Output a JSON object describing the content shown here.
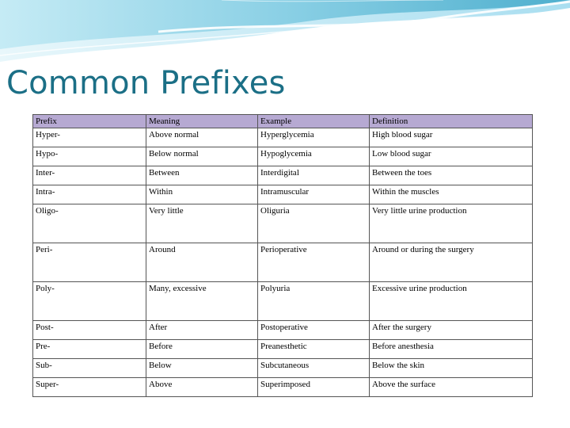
{
  "slide": {
    "title": "Common Prefixes",
    "colors": {
      "title": "#1b6f86",
      "header_bg": "#b6a9d2",
      "wave_light": "#d9f2f8",
      "wave_mid": "#8fd3e6",
      "wave_dark": "#3fa7c8"
    }
  },
  "table": {
    "headers": [
      "Prefix",
      "Meaning",
      "Example",
      "Definition"
    ],
    "rows": [
      {
        "prefix": "Hyper-",
        "meaning": "Above normal",
        "example": "Hyperglycemia",
        "definition": "High blood sugar",
        "tall": false
      },
      {
        "prefix": "Hypo-",
        "meaning": "Below normal",
        "example": "Hypoglycemia",
        "definition": "Low blood sugar",
        "tall": false
      },
      {
        "prefix": "Inter-",
        "meaning": "Between",
        "example": "Interdigital",
        "definition": "Between the toes",
        "tall": false
      },
      {
        "prefix": "Intra-",
        "meaning": "Within",
        "example": "Intramuscular",
        "definition": "Within the muscles",
        "tall": false
      },
      {
        "prefix": "Oligo-",
        "meaning": "Very little",
        "example": "Oliguria",
        "definition": "Very little urine production",
        "tall": true
      },
      {
        "prefix": "Peri-",
        "meaning": "Around",
        "example": "Perioperative",
        "definition": "Around or during the surgery",
        "tall": true
      },
      {
        "prefix": "Poly-",
        "meaning": "Many, excessive",
        "example": "Polyuria",
        "definition": "Excessive urine production",
        "tall": true
      },
      {
        "prefix": "Post-",
        "meaning": "After",
        "example": "Postoperative",
        "definition": "After the surgery",
        "tall": false
      },
      {
        "prefix": "Pre-",
        "meaning": "Before",
        "example": "Preanesthetic",
        "definition": "Before anesthesia",
        "tall": false
      },
      {
        "prefix": "Sub-",
        "meaning": "Below",
        "example": "Subcutaneous",
        "definition": "Below the skin",
        "tall": false
      },
      {
        "prefix": "Super-",
        "meaning": "Above",
        "example": "Superimposed",
        "definition": "Above the surface",
        "tall": false
      }
    ]
  }
}
